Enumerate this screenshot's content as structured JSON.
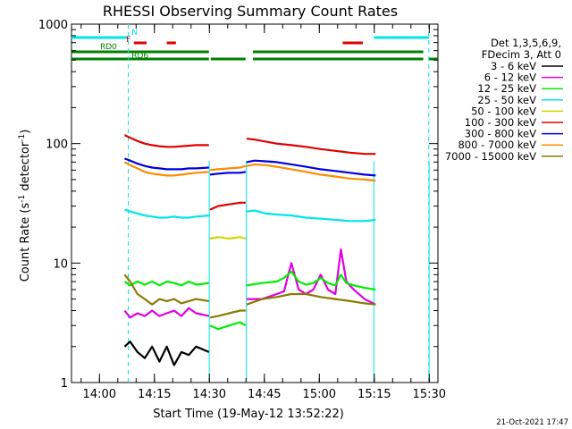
{
  "chart_data": {
    "type": "line",
    "title": "RHESSI Observing Summary Count Rates",
    "xlabel": "Start Time (19-May-12 13:52:22)",
    "ylabel": "Count Rate (s",
    "ylabel_sup1": "-1",
    "ylabel_mid": " detector",
    "ylabel_sup2": "-1",
    "ylabel_end": ")",
    "yscale": "log",
    "ylim": [
      1,
      1000
    ],
    "xlim_minutes": [
      0,
      100
    ],
    "x_ticks": [
      {
        "minute": 7.63,
        "label": "14:00"
      },
      {
        "minute": 22.63,
        "label": "14:15"
      },
      {
        "minute": 37.63,
        "label": "14:30"
      },
      {
        "minute": 52.63,
        "label": "14:45"
      },
      {
        "minute": 67.63,
        "label": "15:00"
      },
      {
        "minute": 82.63,
        "label": "15:15"
      },
      {
        "minute": 97.63,
        "label": "15:30"
      }
    ],
    "y_ticks": [
      {
        "value": 1,
        "label": "1"
      },
      {
        "value": 10,
        "label": "10"
      },
      {
        "value": 100,
        "label": "100"
      },
      {
        "value": 1000,
        "label": "1000"
      }
    ],
    "legend_header": [
      "Det 1,3,5,6,9,",
      "FDecim 3, Att 0"
    ],
    "series": [
      {
        "name": "3 - 6 keV",
        "color": "#000000",
        "segments": [
          [
            14.5,
            2.0
          ],
          [
            16,
            2.2
          ],
          [
            18,
            1.8
          ],
          [
            20,
            1.6
          ],
          [
            22,
            2.0
          ],
          [
            24,
            1.5
          ],
          [
            26,
            2.0
          ],
          [
            28,
            1.4
          ],
          [
            30,
            1.8
          ],
          [
            32,
            1.7
          ],
          [
            34,
            2.0
          ],
          [
            37.5,
            1.8
          ]
        ]
      },
      {
        "name": "6 - 12 keV",
        "color": "#e000e0",
        "segments": [
          [
            14.5,
            4.0
          ],
          [
            16,
            3.5
          ],
          [
            18,
            3.8
          ],
          [
            20,
            3.6
          ],
          [
            22,
            4.0
          ],
          [
            24,
            3.6
          ],
          [
            26,
            3.8
          ],
          [
            28,
            4.0
          ],
          [
            30,
            3.6
          ],
          [
            32,
            4.2
          ],
          [
            34,
            3.8
          ],
          [
            37.5,
            3.6
          ],
          null,
          [
            47.8,
            5.0
          ],
          [
            52,
            5.0
          ],
          [
            56,
            5.5
          ],
          [
            58,
            5.8
          ],
          [
            60,
            10
          ],
          [
            62,
            6.0
          ],
          [
            64,
            5.5
          ],
          [
            66,
            6
          ],
          [
            68,
            8
          ],
          [
            70,
            6
          ],
          [
            72,
            5.5
          ],
          [
            73.5,
            13
          ],
          [
            75,
            7
          ],
          [
            77,
            6
          ],
          [
            80,
            5.0
          ],
          [
            83,
            4.5
          ]
        ]
      },
      {
        "name": "12 - 25 keV",
        "color": "#00ee00",
        "segments": [
          [
            14.5,
            7.0
          ],
          [
            16,
            6.5
          ],
          [
            18,
            7.0
          ],
          [
            20,
            6.6
          ],
          [
            22,
            7.0
          ],
          [
            24,
            6.5
          ],
          [
            26,
            7.0
          ],
          [
            28,
            6.8
          ],
          [
            30,
            6.5
          ],
          [
            32,
            7.0
          ],
          [
            34,
            6.6
          ],
          [
            37.5,
            6.8
          ],
          null,
          [
            37.8,
            3.0
          ],
          [
            40,
            2.8
          ],
          [
            43,
            3.0
          ],
          [
            46,
            3.2
          ],
          [
            47.5,
            3.0
          ],
          null,
          [
            47.8,
            6.5
          ],
          [
            52,
            6.8
          ],
          [
            56,
            7.0
          ],
          [
            58,
            7.5
          ],
          [
            60,
            8.5
          ],
          [
            62,
            7.0
          ],
          [
            64,
            6.6
          ],
          [
            66,
            6.8
          ],
          [
            68,
            7.5
          ],
          [
            70,
            6.8
          ],
          [
            72,
            6.5
          ],
          [
            73.5,
            8
          ],
          [
            75,
            6.8
          ],
          [
            77,
            6.5
          ],
          [
            80,
            6.2
          ],
          [
            83,
            6.0
          ]
        ]
      },
      {
        "name": "25 - 50 keV",
        "color": "#00e6e6",
        "segments": [
          [
            14.5,
            28
          ],
          [
            16,
            27
          ],
          [
            18,
            26
          ],
          [
            20,
            25
          ],
          [
            22,
            24.5
          ],
          [
            24,
            24
          ],
          [
            26,
            24
          ],
          [
            28,
            24.5
          ],
          [
            30,
            24
          ],
          [
            32,
            24
          ],
          [
            34,
            24.5
          ],
          [
            37.5,
            25
          ],
          null,
          [
            47.8,
            27
          ],
          [
            50,
            27.5
          ],
          [
            53,
            26
          ],
          [
            56,
            25.5
          ],
          [
            60,
            25
          ],
          [
            64,
            24
          ],
          [
            68,
            23.5
          ],
          [
            72,
            23
          ],
          [
            76,
            22.5
          ],
          [
            80,
            22.5
          ],
          [
            83,
            23
          ]
        ]
      },
      {
        "name": "50 - 100 keV",
        "color": "#d4d400",
        "segments": [
          [
            37.8,
            16
          ],
          [
            40,
            16.5
          ],
          [
            43,
            16
          ],
          [
            46,
            16.5
          ],
          [
            47.5,
            16
          ]
        ]
      },
      {
        "name": "100 - 300 keV",
        "color": "#e00000",
        "segments": [
          [
            14.5,
            118
          ],
          [
            16,
            112
          ],
          [
            18,
            105
          ],
          [
            20,
            100
          ],
          [
            22,
            97
          ],
          [
            24,
            95
          ],
          [
            26,
            94
          ],
          [
            28,
            94
          ],
          [
            30,
            95
          ],
          [
            32,
            96
          ],
          [
            34,
            97
          ],
          [
            37.5,
            97
          ],
          null,
          [
            37.8,
            28
          ],
          [
            40,
            30
          ],
          [
            43,
            31
          ],
          [
            46,
            32
          ],
          [
            47.5,
            32
          ],
          null,
          [
            47.8,
            110
          ],
          [
            50,
            108
          ],
          [
            53,
            104
          ],
          [
            56,
            100
          ],
          [
            60,
            97
          ],
          [
            64,
            94
          ],
          [
            68,
            90
          ],
          [
            72,
            87
          ],
          [
            76,
            84
          ],
          [
            80,
            82
          ],
          [
            83,
            82
          ]
        ]
      },
      {
        "name": "300 - 800 keV",
        "color": "#0000dd",
        "segments": [
          [
            14.5,
            75
          ],
          [
            16,
            72
          ],
          [
            18,
            68
          ],
          [
            20,
            65
          ],
          [
            22,
            63
          ],
          [
            24,
            62
          ],
          [
            26,
            61
          ],
          [
            28,
            61
          ],
          [
            30,
            61
          ],
          [
            32,
            62
          ],
          [
            34,
            62
          ],
          [
            37.5,
            63
          ],
          null,
          [
            37.8,
            55
          ],
          [
            40,
            56
          ],
          [
            43,
            57
          ],
          [
            46,
            57
          ],
          [
            47.5,
            58
          ],
          null,
          [
            47.8,
            70
          ],
          [
            50,
            72
          ],
          [
            53,
            71
          ],
          [
            56,
            70
          ],
          [
            60,
            67
          ],
          [
            64,
            64
          ],
          [
            68,
            61
          ],
          [
            72,
            59
          ],
          [
            76,
            57
          ],
          [
            80,
            55
          ],
          [
            83,
            54
          ]
        ]
      },
      {
        "name": "800 - 7000 keV",
        "color": "#ff8c00",
        "segments": [
          [
            14.5,
            70
          ],
          [
            16,
            66
          ],
          [
            18,
            62
          ],
          [
            20,
            58
          ],
          [
            22,
            56
          ],
          [
            24,
            55
          ],
          [
            26,
            54
          ],
          [
            28,
            54
          ],
          [
            30,
            55
          ],
          [
            32,
            56
          ],
          [
            34,
            57
          ],
          [
            37.5,
            58
          ],
          null,
          [
            37.8,
            60
          ],
          [
            40,
            61
          ],
          [
            43,
            62
          ],
          [
            46,
            63
          ],
          [
            47.5,
            65
          ],
          null,
          [
            47.8,
            65
          ],
          [
            50,
            67
          ],
          [
            53,
            66
          ],
          [
            56,
            64
          ],
          [
            60,
            61
          ],
          [
            64,
            58
          ],
          [
            68,
            55
          ],
          [
            72,
            53
          ],
          [
            76,
            51
          ],
          [
            80,
            50
          ],
          [
            83,
            49
          ]
        ]
      },
      {
        "name": "7000 - 15000 keV",
        "color": "#8c7a00",
        "segments": [
          [
            14.5,
            8
          ],
          [
            16,
            7
          ],
          [
            18,
            5.5
          ],
          [
            20,
            5.0
          ],
          [
            22,
            4.5
          ],
          [
            24,
            5.0
          ],
          [
            26,
            4.8
          ],
          [
            28,
            5.0
          ],
          [
            30,
            4.6
          ],
          [
            32,
            4.8
          ],
          [
            34,
            5.0
          ],
          [
            37.5,
            4.8
          ],
          null,
          [
            37.8,
            3.5
          ],
          [
            40,
            3.6
          ],
          [
            43,
            3.8
          ],
          [
            46,
            4.0
          ],
          [
            47.5,
            4.0
          ],
          null,
          [
            47.8,
            4.5
          ],
          [
            52,
            5.0
          ],
          [
            56,
            5.2
          ],
          [
            60,
            5.5
          ],
          [
            64,
            5.5
          ],
          [
            68,
            5.2
          ],
          [
            72,
            5.0
          ],
          [
            76,
            4.8
          ],
          [
            80,
            4.6
          ],
          [
            83,
            4.5
          ]
        ]
      }
    ],
    "annotations": {
      "flags": [
        {
          "label": "N",
          "color": "#00e6e6",
          "y_level": "top",
          "bars": [
            [
              0,
              15.5
            ],
            [
              82.5,
              97.5
            ]
          ]
        },
        {
          "label": "F",
          "color": "#e00000",
          "y_level": "mid",
          "bars": [
            [
              17,
              20.5
            ],
            [
              26,
              28.5
            ],
            [
              74,
              79.5
            ]
          ]
        },
        {
          "label": "RD0",
          "color": "#008000",
          "y_level": "upper",
          "bars": [
            [
              0,
              37.5
            ],
            [
              49.5,
              96
            ]
          ]
        },
        {
          "label": "RD6",
          "color": "#008000",
          "y_level": "lower",
          "bars": [
            [
              0,
              37.5
            ],
            [
              38,
              47.5
            ],
            [
              49.5,
              96
            ],
            [
              97.5,
              100
            ]
          ]
        }
      ],
      "cyan_vertical_dashed_minutes": [
        15.5,
        97.5
      ],
      "cyan_vertical_solid_minutes": [
        37.6,
        47.7,
        82.5,
        97.6
      ]
    },
    "grid": false,
    "legend_position": "right"
  },
  "footer": {
    "date_stamp": "21-Oct-2021 17:47"
  }
}
